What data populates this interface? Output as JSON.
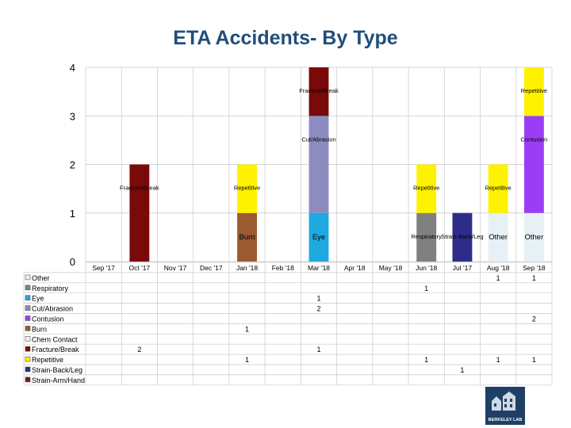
{
  "title": "ETA Accidents- By Type",
  "logo_text": "BERKELEY LAB",
  "chart_data": {
    "type": "bar",
    "stacked": true,
    "title": "ETA Accidents- By Type",
    "xlabel": "",
    "ylabel": "",
    "ylim": [
      0,
      4
    ],
    "yticks": [
      0,
      1,
      2,
      3,
      4
    ],
    "grid": true,
    "legend": "data-table-left",
    "categories": [
      "Sep '17",
      "Oct '17",
      "Nov '17",
      "Dec '17",
      "Jan '18",
      "Feb '18",
      "Mar '18",
      "Apr '18",
      "May '18",
      "Jun '18",
      "Jul '17",
      "Aug '18",
      "Sep '18"
    ],
    "series": [
      {
        "name": "Other",
        "color": "#E6F0F5",
        "values": [
          null,
          null,
          null,
          null,
          null,
          null,
          null,
          null,
          null,
          null,
          null,
          1,
          1
        ]
      },
      {
        "name": "Respiratory",
        "color": "#808080",
        "values": [
          null,
          null,
          null,
          null,
          null,
          null,
          null,
          null,
          null,
          1,
          null,
          null,
          null
        ]
      },
      {
        "name": "Eye",
        "color": "#1FA9E1",
        "values": [
          null,
          null,
          null,
          null,
          null,
          null,
          1,
          null,
          null,
          null,
          null,
          null,
          null
        ]
      },
      {
        "name": "Cut/Abrasion",
        "color": "#8C8CC0",
        "values": [
          null,
          null,
          null,
          null,
          null,
          null,
          2,
          null,
          null,
          null,
          null,
          null,
          null
        ]
      },
      {
        "name": "Contusion",
        "color": "#9B3DF5",
        "values": [
          null,
          null,
          null,
          null,
          null,
          null,
          null,
          null,
          null,
          null,
          null,
          null,
          2
        ]
      },
      {
        "name": "Burn",
        "color": "#9C5A32",
        "values": [
          null,
          null,
          null,
          null,
          1,
          null,
          null,
          null,
          null,
          null,
          null,
          null,
          null
        ]
      },
      {
        "name": "Chem Contact",
        "color": "#F2F2F2",
        "values": [
          null,
          null,
          null,
          null,
          null,
          null,
          null,
          null,
          null,
          null,
          null,
          null,
          null
        ]
      },
      {
        "name": "Fracture/Break",
        "color": "#7A0A0A",
        "values": [
          null,
          2,
          null,
          null,
          null,
          null,
          1,
          null,
          null,
          null,
          null,
          null,
          null
        ]
      },
      {
        "name": "Repetitive",
        "color": "#FFF200",
        "values": [
          null,
          null,
          null,
          null,
          1,
          null,
          null,
          null,
          null,
          1,
          null,
          1,
          1
        ]
      },
      {
        "name": "Strain-Back/Leg",
        "color": "#2E2C8A",
        "values": [
          null,
          null,
          null,
          null,
          null,
          null,
          null,
          null,
          null,
          null,
          1,
          null,
          null
        ]
      },
      {
        "name": "Strain-Arm/Hand",
        "color": "#7A1515",
        "values": [
          null,
          null,
          null,
          null,
          null,
          null,
          null,
          null,
          null,
          null,
          null,
          null,
          null
        ]
      }
    ],
    "segment_labels": [
      {
        "category": "Oct '17",
        "series": "Fracture/Break",
        "text": "Fracture/Break"
      },
      {
        "category": "Jan '18",
        "series": "Repetitive",
        "text": "Repetitive"
      },
      {
        "category": "Jan '18",
        "series": "Burn",
        "text": "Burn"
      },
      {
        "category": "Mar '18",
        "series": "Fracture/Break",
        "text": "Fracture/Break"
      },
      {
        "category": "Mar '18",
        "series": "Cut/Abrasion",
        "text": "Cut/Abrasion"
      },
      {
        "category": "Mar '18",
        "series": "Eye",
        "text": "Eye"
      },
      {
        "category": "Jun '18",
        "series": "Repetitive",
        "text": "Repetitive"
      },
      {
        "category": "Jun '18",
        "series": "Respiratory",
        "text": "Respiratory"
      },
      {
        "category": "Jul '17",
        "series": "Strain-Back/Leg",
        "text": "Strain-Back/Leg"
      },
      {
        "category": "Aug '18",
        "series": "Repetitive",
        "text": "Repetitive"
      },
      {
        "category": "Aug '18",
        "series": "Other",
        "text": "Other"
      },
      {
        "category": "Sep '18",
        "series": "Repetitive",
        "text": "Repetitive"
      },
      {
        "category": "Sep '18",
        "series": "Contusion",
        "text": "Contusion"
      },
      {
        "category": "Sep '18",
        "series": "Other",
        "text": "Other"
      }
    ]
  }
}
